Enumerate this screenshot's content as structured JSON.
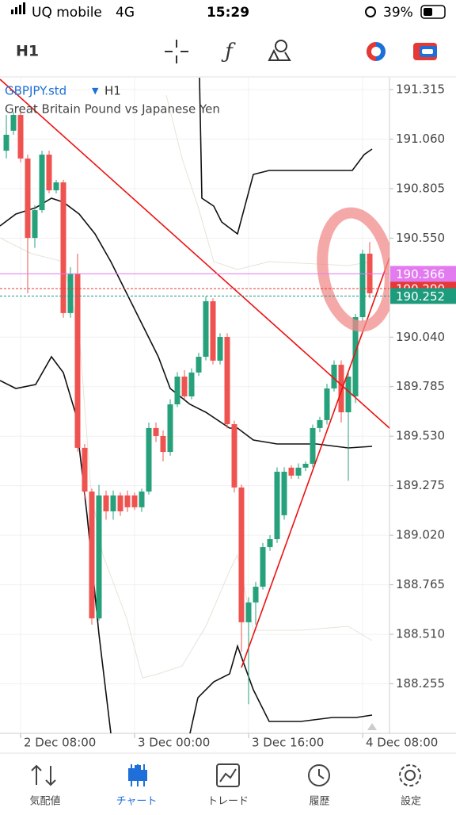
{
  "status_bar": {
    "carrier": "UQ mobile",
    "network": "4G",
    "time": "15:29",
    "battery": "39%"
  },
  "toolbar": {
    "timeframe": "H1"
  },
  "chart_data": {
    "type": "candlestick",
    "symbol": "GBPJPY.std",
    "timeframe": "H1",
    "description": "Great Britain Pound vs Japanese Yen",
    "up_color": "#26a17b",
    "down_color": "#ef5350",
    "ylim": [
      188.0,
      191.376
    ],
    "yticks": [
      {
        "value": 191.315,
        "label": "191.315"
      },
      {
        "value": 191.06,
        "label": "191.060"
      },
      {
        "value": 190.805,
        "label": "190.805"
      },
      {
        "value": 190.55,
        "label": "190.550"
      },
      {
        "value": 190.04,
        "label": "190.040"
      },
      {
        "value": 189.785,
        "label": "189.785"
      },
      {
        "value": 189.53,
        "label": "189.530"
      },
      {
        "value": 189.275,
        "label": "189.275"
      },
      {
        "value": 189.02,
        "label": "189.020"
      },
      {
        "value": 188.765,
        "label": "188.765"
      },
      {
        "value": 188.51,
        "label": "188.510"
      },
      {
        "value": 188.255,
        "label": "188.255"
      }
    ],
    "xticks": [
      {
        "value": 2,
        "label": "2 Dec 08:00"
      },
      {
        "value": 18,
        "label": "3 Dec 00:00"
      },
      {
        "value": 34,
        "label": "3 Dec 16:00"
      },
      {
        "value": 50,
        "label": "4 Dec 08:00"
      }
    ],
    "price_lines": [
      {
        "value": 190.29,
        "label": "190.290",
        "color": "#e53935"
      },
      {
        "value": 190.366,
        "label": "190.366",
        "color": "#e27bf0"
      },
      {
        "value": 190.252,
        "label": "190.252",
        "color": "#1e9b7c"
      }
    ],
    "candles": [
      [
        191.0,
        191.184,
        190.96,
        191.082
      ],
      [
        191.103,
        191.2,
        191.082,
        191.184
      ],
      [
        191.184,
        191.2,
        190.94,
        190.96
      ],
      [
        190.96,
        190.98,
        190.266,
        190.551
      ],
      [
        190.551,
        190.72,
        190.5,
        190.694
      ],
      [
        190.694,
        191.0,
        190.68,
        190.98
      ],
      [
        190.98,
        191.0,
        190.78,
        190.796
      ],
      [
        190.796,
        190.85,
        190.78,
        190.837
      ],
      [
        190.837,
        190.85,
        190.14,
        190.164
      ],
      [
        190.164,
        190.4,
        190.14,
        190.368
      ],
      [
        190.368,
        190.47,
        189.45,
        189.47
      ],
      [
        189.47,
        189.49,
        189.2,
        189.245
      ],
      [
        189.245,
        189.26,
        188.56,
        188.592
      ],
      [
        188.592,
        189.28,
        188.58,
        189.225
      ],
      [
        189.225,
        189.25,
        189.1,
        189.143
      ],
      [
        189.143,
        189.25,
        189.1,
        189.225
      ],
      [
        189.225,
        189.24,
        189.12,
        189.143
      ],
      [
        189.225,
        189.25,
        189.14,
        189.164
      ],
      [
        189.225,
        189.24,
        189.15,
        189.164
      ],
      [
        189.164,
        189.26,
        189.14,
        189.245
      ],
      [
        189.245,
        189.6,
        189.23,
        189.572
      ],
      [
        189.572,
        189.6,
        189.5,
        189.531
      ],
      [
        189.531,
        189.56,
        189.4,
        189.449
      ],
      [
        189.449,
        189.72,
        189.43,
        189.694
      ],
      [
        189.694,
        189.86,
        189.68,
        189.837
      ],
      [
        189.837,
        189.87,
        189.72,
        189.735
      ],
      [
        189.735,
        189.88,
        189.72,
        189.858
      ],
      [
        189.858,
        189.96,
        189.84,
        189.939
      ],
      [
        189.939,
        190.25,
        189.92,
        190.225
      ],
      [
        190.225,
        190.24,
        189.9,
        189.919
      ],
      [
        189.919,
        190.06,
        189.9,
        190.041
      ],
      [
        190.041,
        190.06,
        189.57,
        189.592
      ],
      [
        189.592,
        189.61,
        189.24,
        189.266
      ],
      [
        189.266,
        189.28,
        188.42,
        188.572
      ],
      [
        188.572,
        188.7,
        188.15,
        188.674
      ],
      [
        188.674,
        188.78,
        188.56,
        188.755
      ],
      [
        188.755,
        188.98,
        188.74,
        188.959
      ],
      [
        188.959,
        189.02,
        188.94,
        189.0
      ],
      [
        189.0,
        189.37,
        188.98,
        189.347
      ],
      [
        189.123,
        189.37,
        189.1,
        189.347
      ],
      [
        189.368,
        189.38,
        189.31,
        189.327
      ],
      [
        189.327,
        189.39,
        189.31,
        189.368
      ],
      [
        189.368,
        189.4,
        189.35,
        189.388
      ],
      [
        189.388,
        189.59,
        189.37,
        189.572
      ],
      [
        189.572,
        189.63,
        189.55,
        189.613
      ],
      [
        189.613,
        189.8,
        189.59,
        189.776
      ],
      [
        189.776,
        189.92,
        189.76,
        189.898
      ],
      [
        189.898,
        189.92,
        189.6,
        189.653
      ],
      [
        189.653,
        189.86,
        189.3,
        189.837
      ],
      [
        189.735,
        190.16,
        189.7,
        190.143
      ],
      [
        190.143,
        190.49,
        190.12,
        190.47
      ],
      [
        190.47,
        190.53,
        190.24,
        190.266
      ]
    ]
  },
  "tabs": [
    {
      "label": "気配値"
    },
    {
      "label": "チャート"
    },
    {
      "label": "トレード"
    },
    {
      "label": "履歴"
    },
    {
      "label": "設定"
    }
  ]
}
